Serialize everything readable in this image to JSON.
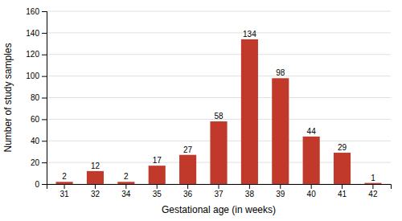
{
  "chart_data": {
    "type": "bar",
    "categories": [
      "31",
      "32",
      "34",
      "35",
      "36",
      "37",
      "38",
      "39",
      "40",
      "41",
      "42"
    ],
    "values": [
      2,
      12,
      2,
      17,
      27,
      58,
      134,
      98,
      44,
      29,
      1
    ],
    "color": "#c0392b",
    "xlabel": "Gestational age (in weeks)",
    "ylabel": "Number of study samples",
    "ylim": [
      0,
      160
    ],
    "yticks": [
      0,
      20,
      40,
      60,
      80,
      100,
      120,
      140,
      160
    ],
    "grid": true,
    "data_labels": true
  }
}
